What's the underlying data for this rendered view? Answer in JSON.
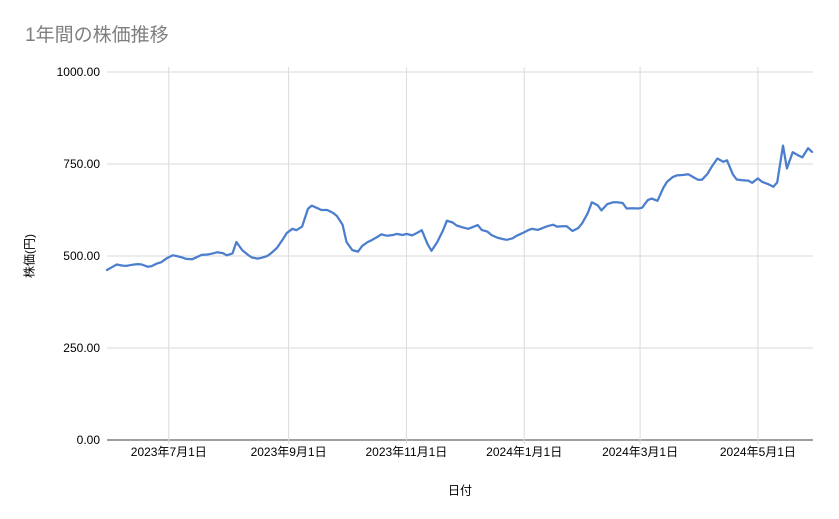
{
  "chart_title": "1年間の株価推移",
  "colors": {
    "line": "#4b7ecd",
    "gridline": "#dadada",
    "axis_line": "#424242",
    "title_text": "#7f7f7f",
    "label_text": "#000000",
    "background": "#ffffff"
  },
  "chart_data": {
    "type": "line",
    "title": "1年間の株価推移",
    "xlabel": "日付",
    "ylabel": "株価(円)",
    "ylim": [
      0,
      1000
    ],
    "grid": true,
    "legend_position": "none",
    "y_ticks": [
      {
        "value": 0,
        "label": "0.00"
      },
      {
        "value": 250,
        "label": "250.00"
      },
      {
        "value": 500,
        "label": "500.00"
      },
      {
        "value": 750,
        "label": "750.00"
      },
      {
        "value": 1000,
        "label": "1000.00"
      }
    ],
    "x_ticks": [
      {
        "date": "2023-07-01",
        "label": "2023年7月1日"
      },
      {
        "date": "2023-09-01",
        "label": "2023年9月1日"
      },
      {
        "date": "2023-11-01",
        "label": "2023年11月1日"
      },
      {
        "date": "2024-01-01",
        "label": "2024年1月1日"
      },
      {
        "date": "2024-03-01",
        "label": "2024年3月1日"
      },
      {
        "date": "2024-05-01",
        "label": "2024年5月1日"
      }
    ],
    "series": [
      {
        "name": "株価",
        "color": "#4b7ecd",
        "points": [
          [
            "2023-05-30",
            462
          ],
          [
            "2023-06-02",
            471
          ],
          [
            "2023-06-04",
            477
          ],
          [
            "2023-06-07",
            474
          ],
          [
            "2023-06-09",
            473
          ],
          [
            "2023-06-12",
            476
          ],
          [
            "2023-06-15",
            478
          ],
          [
            "2023-06-17",
            477
          ],
          [
            "2023-06-20",
            471
          ],
          [
            "2023-06-22",
            472
          ],
          [
            "2023-06-25",
            480
          ],
          [
            "2023-06-27",
            483
          ],
          [
            "2023-06-30",
            494
          ],
          [
            "2023-07-03",
            502
          ],
          [
            "2023-07-05",
            500
          ],
          [
            "2023-07-08",
            496
          ],
          [
            "2023-07-10",
            492
          ],
          [
            "2023-07-13",
            491
          ],
          [
            "2023-07-16",
            498
          ],
          [
            "2023-07-18",
            503
          ],
          [
            "2023-07-21",
            504
          ],
          [
            "2023-07-23",
            506
          ],
          [
            "2023-07-26",
            510
          ],
          [
            "2023-07-29",
            508
          ],
          [
            "2023-07-31",
            502
          ],
          [
            "2023-08-03",
            507
          ],
          [
            "2023-08-05",
            538
          ],
          [
            "2023-08-08",
            516
          ],
          [
            "2023-08-11",
            503
          ],
          [
            "2023-08-13",
            496
          ],
          [
            "2023-08-16",
            493
          ],
          [
            "2023-08-18",
            495
          ],
          [
            "2023-08-21",
            500
          ],
          [
            "2023-08-23",
            508
          ],
          [
            "2023-08-26",
            522
          ],
          [
            "2023-08-29",
            545
          ],
          [
            "2023-08-31",
            562
          ],
          [
            "2023-09-03",
            574
          ],
          [
            "2023-09-05",
            570
          ],
          [
            "2023-09-08",
            580
          ],
          [
            "2023-09-11",
            628
          ],
          [
            "2023-09-13",
            637
          ],
          [
            "2023-09-16",
            630
          ],
          [
            "2023-09-18",
            625
          ],
          [
            "2023-09-21",
            625
          ],
          [
            "2023-09-24",
            617
          ],
          [
            "2023-09-26",
            609
          ],
          [
            "2023-09-29",
            585
          ],
          [
            "2023-10-01",
            538
          ],
          [
            "2023-10-04",
            516
          ],
          [
            "2023-10-07",
            512
          ],
          [
            "2023-10-09",
            527
          ],
          [
            "2023-10-12",
            538
          ],
          [
            "2023-10-14",
            543
          ],
          [
            "2023-10-17",
            552
          ],
          [
            "2023-10-19",
            559
          ],
          [
            "2023-10-22",
            555
          ],
          [
            "2023-10-25",
            557
          ],
          [
            "2023-10-27",
            560
          ],
          [
            "2023-10-30",
            557
          ],
          [
            "2023-11-01",
            560
          ],
          [
            "2023-11-04",
            556
          ],
          [
            "2023-11-07",
            564
          ],
          [
            "2023-11-09",
            570
          ],
          [
            "2023-11-12",
            532
          ],
          [
            "2023-11-14",
            514
          ],
          [
            "2023-11-17",
            538
          ],
          [
            "2023-11-20",
            570
          ],
          [
            "2023-11-22",
            596
          ],
          [
            "2023-11-25",
            591
          ],
          [
            "2023-11-27",
            583
          ],
          [
            "2023-11-30",
            578
          ],
          [
            "2023-12-03",
            574
          ],
          [
            "2023-12-05",
            578
          ],
          [
            "2023-12-08",
            584
          ],
          [
            "2023-12-10",
            571
          ],
          [
            "2023-12-13",
            566
          ],
          [
            "2023-12-15",
            557
          ],
          [
            "2023-12-18",
            550
          ],
          [
            "2023-12-21",
            546
          ],
          [
            "2023-12-23",
            544
          ],
          [
            "2023-12-26",
            548
          ],
          [
            "2023-12-28",
            555
          ],
          [
            "2023-12-31",
            562
          ],
          [
            "2024-01-03",
            570
          ],
          [
            "2024-01-05",
            574
          ],
          [
            "2024-01-08",
            571
          ],
          [
            "2024-01-10",
            575
          ],
          [
            "2024-01-13",
            581
          ],
          [
            "2024-01-16",
            585
          ],
          [
            "2024-01-18",
            580
          ],
          [
            "2024-01-21",
            581
          ],
          [
            "2024-01-23",
            581
          ],
          [
            "2024-01-26",
            568
          ],
          [
            "2024-01-29",
            576
          ],
          [
            "2024-01-31",
            589
          ],
          [
            "2024-02-03",
            617
          ],
          [
            "2024-02-05",
            646
          ],
          [
            "2024-02-08",
            638
          ],
          [
            "2024-02-10",
            624
          ],
          [
            "2024-02-13",
            641
          ],
          [
            "2024-02-16",
            646
          ],
          [
            "2024-02-18",
            646
          ],
          [
            "2024-02-21",
            644
          ],
          [
            "2024-02-23",
            629
          ],
          [
            "2024-02-26",
            630
          ],
          [
            "2024-02-29",
            629
          ],
          [
            "2024-03-02",
            631
          ],
          [
            "2024-03-05",
            652
          ],
          [
            "2024-03-07",
            656
          ],
          [
            "2024-03-10",
            650
          ],
          [
            "2024-03-13",
            685
          ],
          [
            "2024-03-15",
            702
          ],
          [
            "2024-03-18",
            715
          ],
          [
            "2024-03-20",
            719
          ],
          [
            "2024-03-23",
            720
          ],
          [
            "2024-03-26",
            722
          ],
          [
            "2024-03-28",
            716
          ],
          [
            "2024-03-31",
            707
          ],
          [
            "2024-04-02",
            707
          ],
          [
            "2024-04-05",
            724
          ],
          [
            "2024-04-07",
            742
          ],
          [
            "2024-04-10",
            765
          ],
          [
            "2024-04-13",
            756
          ],
          [
            "2024-04-15",
            760
          ],
          [
            "2024-04-18",
            722
          ],
          [
            "2024-04-20",
            708
          ],
          [
            "2024-04-23",
            706
          ],
          [
            "2024-04-26",
            705
          ],
          [
            "2024-04-28",
            699
          ],
          [
            "2024-05-01",
            711
          ],
          [
            "2024-05-03",
            702
          ],
          [
            "2024-05-06",
            696
          ],
          [
            "2024-05-09",
            688
          ],
          [
            "2024-05-11",
            700
          ],
          [
            "2024-05-14",
            800
          ],
          [
            "2024-05-16",
            738
          ],
          [
            "2024-05-19",
            782
          ],
          [
            "2024-05-22",
            773
          ],
          [
            "2024-05-24",
            768
          ],
          [
            "2024-05-27",
            793
          ],
          [
            "2024-05-29",
            783
          ]
        ]
      }
    ]
  }
}
